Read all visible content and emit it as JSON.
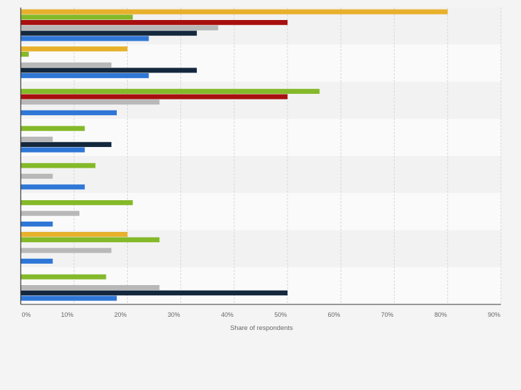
{
  "chart_data": {
    "type": "bar",
    "orientation": "horizontal",
    "categories": [
      "",
      "",
      "",
      "",
      "",
      "",
      "",
      ""
    ],
    "series": [
      {
        "color": "#e8b12c",
        "values": [
          80,
          20,
          null,
          null,
          null,
          null,
          20,
          null
        ]
      },
      {
        "color": "#84b929",
        "values": [
          21,
          1.5,
          56,
          12,
          14,
          21,
          26,
          16
        ]
      },
      {
        "color": "#a80f0f",
        "values": [
          50,
          null,
          50,
          null,
          null,
          null,
          null,
          null
        ]
      },
      {
        "color": "#b8b8b8",
        "values": [
          37,
          17,
          26,
          6,
          6,
          11,
          17,
          26
        ]
      },
      {
        "color": "#14283d",
        "values": [
          33,
          33,
          null,
          17,
          null,
          null,
          null,
          50
        ]
      },
      {
        "color": "#2f77d6",
        "values": [
          24,
          24,
          18,
          12,
          12,
          6,
          6,
          18
        ]
      }
    ],
    "xlim": [
      0,
      90
    ],
    "ticks": [
      "0%",
      "10%",
      "20%",
      "30%",
      "40%",
      "50%",
      "60%",
      "70%",
      "80%",
      "90%"
    ],
    "xlabel": "Share of respondents",
    "ylabel": "",
    "title": "",
    "grid": true,
    "legend": "none"
  }
}
